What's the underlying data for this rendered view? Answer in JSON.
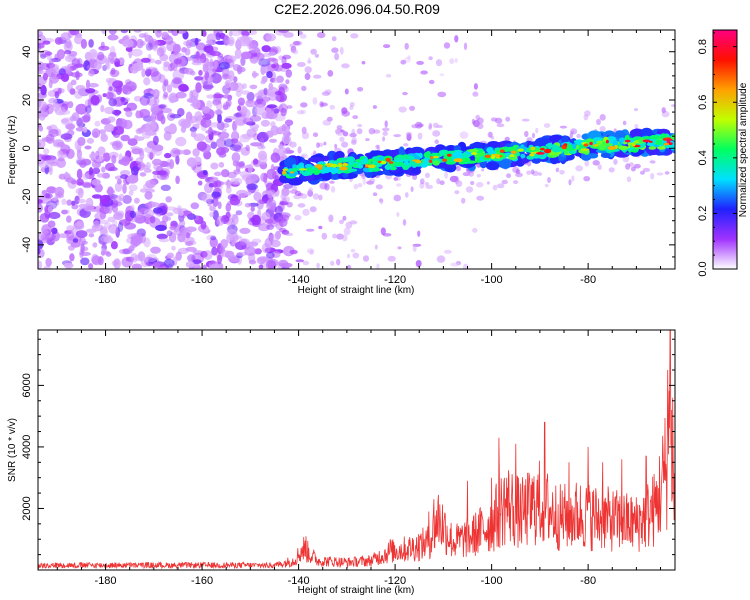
{
  "title": "C2E2.2026.096.04.50.R09",
  "chart_data": [
    {
      "type": "heatmap",
      "name": "spectrogram",
      "xlabel": "Height of straight line (km)",
      "ylabel": "Frequency (Hz)",
      "xlim": [
        -194,
        -62
      ],
      "ylim": [
        -50,
        49
      ],
      "xticks": [
        -180,
        -160,
        -140,
        -120,
        -100,
        -80
      ],
      "yticks": [
        -40,
        -20,
        0,
        20,
        40
      ],
      "xticklabels": [
        "-180",
        "-160",
        "-140",
        "-120",
        "-100",
        "-80"
      ],
      "yticklabels": [
        "-40",
        "-20",
        "0",
        "20",
        "40"
      ],
      "noise_region_x": [
        -194,
        -142
      ],
      "signal_start_x": -143,
      "signal_trend": {
        "x": [
          -143,
          -130,
          -120,
          -110,
          -100,
          -90,
          -80,
          -70,
          -63
        ],
        "freq": [
          -10,
          -7,
          -6,
          -4,
          -3,
          -1,
          1,
          2,
          3
        ]
      },
      "colorbar": {
        "label": "Normalized spectral amplitude",
        "range": [
          0.0,
          0.86
        ],
        "ticks": [
          0.0,
          0.2,
          0.4,
          0.6,
          0.8
        ],
        "ticklabels": [
          "0.0",
          "0.2",
          "0.4",
          "0.6",
          "0.8"
        ],
        "colors": [
          "#ffffff",
          "#a033ff",
          "#2020ff",
          "#00e0ff",
          "#00ff60",
          "#c0ff00",
          "#ffa000",
          "#ff1000",
          "#ff0080"
        ]
      }
    },
    {
      "type": "line",
      "name": "snr",
      "xlabel": "Height of straight line (km)",
      "ylabel": "SNR (10 * v/v)",
      "xlim": [
        -194,
        -62
      ],
      "ylim": [
        0,
        7800
      ],
      "xticks": [
        -180,
        -160,
        -140,
        -120,
        -100,
        -80
      ],
      "yticks": [
        2000,
        4000,
        6000
      ],
      "xticklabels": [
        "-180",
        "-160",
        "-140",
        "-120",
        "-100",
        "-80"
      ],
      "yticklabels": [
        "2000",
        "4000",
        "6000"
      ],
      "line_color": "#ee3333",
      "envelope": {
        "x": [
          -194,
          -145,
          -141,
          -139,
          -136,
          -130,
          -125,
          -121,
          -117,
          -113,
          -111,
          -108,
          -104,
          -100,
          -97,
          -94,
          -90,
          -86,
          -82,
          -78,
          -74,
          -70,
          -66,
          -64,
          -63,
          -62
        ],
        "mean": [
          150,
          150,
          300,
          700,
          300,
          250,
          300,
          600,
          700,
          900,
          1700,
          900,
          1100,
          1500,
          2200,
          1800,
          2200,
          1700,
          1800,
          1700,
          1600,
          1500,
          2000,
          3200,
          4500,
          2000
        ]
      },
      "peaks": {
        "x": [
          -138.5,
          -121,
          -113,
          -112,
          -105,
          -100,
          -98.5,
          -95,
          -89,
          -84,
          -80,
          -77,
          -73,
          -68,
          -63.5,
          -63,
          -62.5
        ],
        "y": [
          1100,
          1000,
          1900,
          2300,
          2900,
          3000,
          4300,
          4100,
          4800,
          3500,
          4000,
          3500,
          3600,
          3700,
          6500,
          7800,
          5600
        ]
      }
    }
  ]
}
